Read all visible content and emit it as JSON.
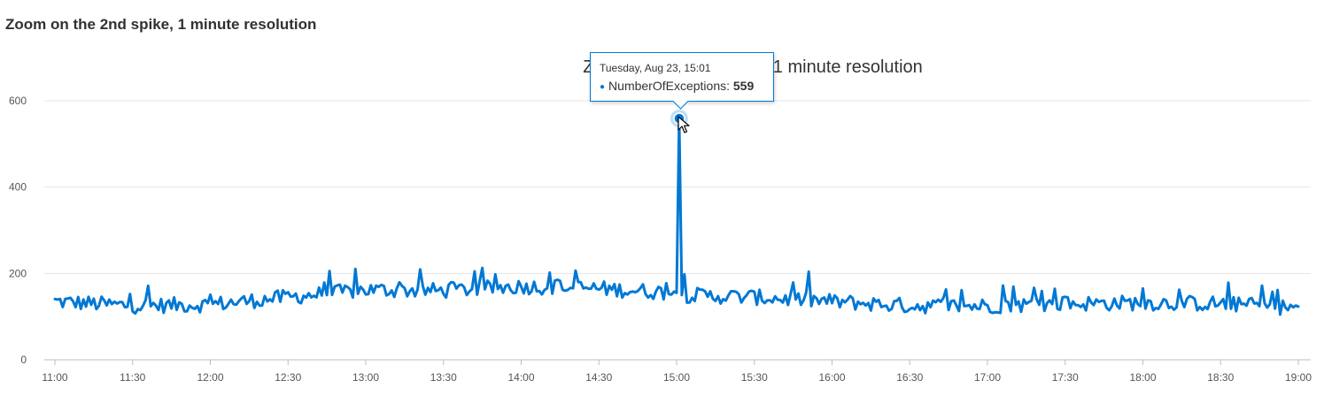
{
  "header": {
    "title": "Zoom on the 2nd spike, 1 minute resolution"
  },
  "chart_data": {
    "type": "line",
    "title": "Zoom on the 2nd spike, 1 minute resolution",
    "xlabel": "",
    "ylabel": "",
    "x_start": "11:00",
    "x_end": "19:00",
    "x_interval_minutes": 1,
    "xticks": [
      "11:00",
      "11:30",
      "12:00",
      "12:30",
      "13:00",
      "13:30",
      "14:00",
      "14:30",
      "15:00",
      "15:30",
      "16:00",
      "16:30",
      "17:00",
      "17:30",
      "18:00",
      "18:30",
      "19:00"
    ],
    "yticks": [
      0,
      200,
      400,
      600
    ],
    "ylim": [
      0,
      600
    ],
    "grid": true,
    "line_color": "#0078d4",
    "series": [
      {
        "name": "NumberOfExceptions",
        "anchors": [
          {
            "x": "11:00",
            "y": 135
          },
          {
            "x": "11:30",
            "y": 125
          },
          {
            "x": "12:00",
            "y": 128
          },
          {
            "x": "12:30",
            "y": 145
          },
          {
            "x": "13:00",
            "y": 162
          },
          {
            "x": "13:30",
            "y": 160
          },
          {
            "x": "14:00",
            "y": 170
          },
          {
            "x": "14:30",
            "y": 165
          },
          {
            "x": "15:00",
            "y": 155
          },
          {
            "x": "15:01",
            "y": 559
          },
          {
            "x": "15:02",
            "y": 150
          },
          {
            "x": "15:30",
            "y": 145
          },
          {
            "x": "16:00",
            "y": 135
          },
          {
            "x": "16:30",
            "y": 125
          },
          {
            "x": "17:00",
            "y": 125
          },
          {
            "x": "17:30",
            "y": 130
          },
          {
            "x": "18:00",
            "y": 132
          },
          {
            "x": "18:30",
            "y": 130
          },
          {
            "x": "19:00",
            "y": 120
          }
        ]
      }
    ],
    "highlight": {
      "x": "15:01",
      "y": 559,
      "date_label": "Tuesday, Aug 23, 15:01",
      "series_label": "NumberOfExceptions:",
      "value_label": "559"
    }
  }
}
